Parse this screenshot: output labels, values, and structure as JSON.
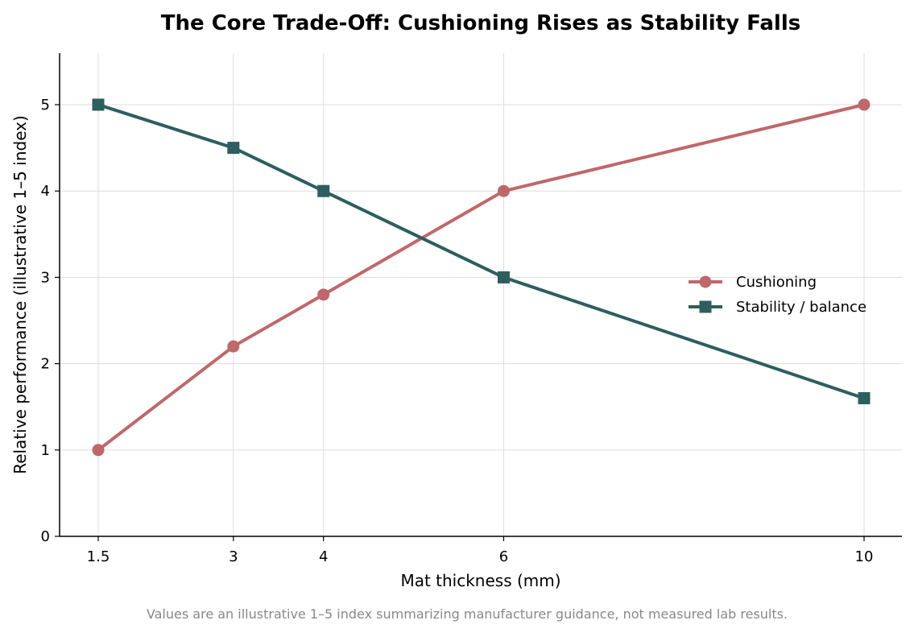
{
  "chart_data": {
    "type": "line",
    "title": "The Core Trade-Off: Cushioning Rises as Stability Falls",
    "xlabel": "Mat thickness (mm)",
    "ylabel": "Relative performance (illustrative 1–5 index)",
    "x": [
      1.5,
      3,
      4,
      6,
      10
    ],
    "x_tick_labels": [
      "1.5",
      "3",
      "4",
      "6",
      "10"
    ],
    "y_ticks": [
      0,
      1,
      2,
      3,
      4,
      5
    ],
    "y_tick_labels": [
      "0",
      "1",
      "2",
      "3",
      "4",
      "5"
    ],
    "xlim": [
      1.5,
      10
    ],
    "ylim": [
      0,
      5.6
    ],
    "grid": true,
    "legend_position": "center-right",
    "series": [
      {
        "name": "Cushioning",
        "values": [
          1,
          2.2,
          2.8,
          4,
          5
        ],
        "color": "#c0676a",
        "marker": "circle"
      },
      {
        "name": "Stability / balance",
        "values": [
          5,
          4.5,
          4,
          3,
          1.6
        ],
        "color": "#2c5f5d",
        "marker": "square"
      }
    ]
  },
  "footnote": "Values are an illustrative 1–5 index summarizing manufacturer guidance, not measured lab results."
}
